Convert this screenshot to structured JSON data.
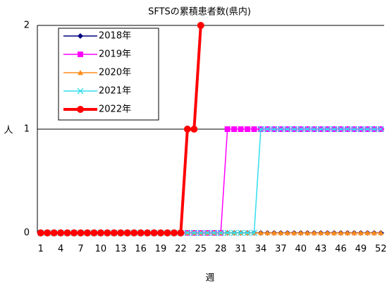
{
  "chart_data": {
    "type": "line",
    "title": "SFTSの累積患者数(県内)",
    "y_label": "人",
    "x_label": "週",
    "categories": [
      "1",
      null,
      null,
      "4",
      null,
      null,
      "7",
      null,
      null,
      "10",
      null,
      null,
      "13",
      null,
      null,
      "16",
      null,
      null,
      "19",
      null,
      null,
      "22",
      null,
      null,
      "25",
      null,
      null,
      "28",
      null,
      null,
      "31",
      null,
      null,
      "34",
      null,
      null,
      "37",
      null,
      null,
      "40",
      null,
      null,
      "43",
      null,
      null,
      "46",
      null,
      null,
      "49",
      null,
      null,
      "52"
    ],
    "ylim": [
      0,
      2
    ],
    "yticks": [
      0,
      1,
      2
    ],
    "grid": true,
    "legend": "upper left",
    "series": [
      {
        "name": "2018年",
        "color": "#000080",
        "marker": "diamond",
        "values": [
          0,
          0,
          0,
          0,
          0,
          0,
          0,
          0,
          0,
          0,
          0,
          0,
          0,
          0,
          0,
          0,
          0,
          0,
          0,
          0,
          0,
          0,
          0,
          0,
          0,
          0,
          0,
          0,
          0,
          0,
          0,
          0,
          0,
          0,
          0,
          0,
          0,
          0,
          0,
          0,
          0,
          0,
          0,
          0,
          0,
          0,
          0,
          0,
          0,
          0,
          0,
          0
        ]
      },
      {
        "name": "2019年",
        "color": "#ff00ff",
        "marker": "square",
        "values": [
          0,
          0,
          0,
          0,
          0,
          0,
          0,
          0,
          0,
          0,
          0,
          0,
          0,
          0,
          0,
          0,
          0,
          0,
          0,
          0,
          0,
          0,
          0,
          0,
          0,
          0,
          0,
          0,
          1,
          1,
          1,
          1,
          1,
          1,
          1,
          1,
          1,
          1,
          1,
          1,
          1,
          1,
          1,
          1,
          1,
          1,
          1,
          1,
          1,
          1,
          1,
          1
        ]
      },
      {
        "name": "2020年",
        "color": "#ff8c1a",
        "marker": "triangle",
        "values": [
          0,
          0,
          0,
          0,
          0,
          0,
          0,
          0,
          0,
          0,
          0,
          0,
          0,
          0,
          0,
          0,
          0,
          0,
          0,
          0,
          0,
          0,
          0,
          0,
          0,
          0,
          0,
          0,
          0,
          0,
          0,
          0,
          0,
          0,
          0,
          0,
          0,
          0,
          0,
          0,
          0,
          0,
          0,
          0,
          0,
          0,
          0,
          0,
          0,
          0,
          0,
          0
        ]
      },
      {
        "name": "2021年",
        "color": "#33ddee",
        "marker": "x",
        "values": [
          0,
          0,
          0,
          0,
          0,
          0,
          0,
          0,
          0,
          0,
          0,
          0,
          0,
          0,
          0,
          0,
          0,
          0,
          0,
          0,
          0,
          0,
          0,
          0,
          0,
          0,
          0,
          0,
          0,
          0,
          0,
          0,
          0,
          1,
          1,
          1,
          1,
          1,
          1,
          1,
          1,
          1,
          1,
          1,
          1,
          1,
          1,
          1,
          1,
          1,
          1,
          1
        ]
      },
      {
        "name": "2022年",
        "color": "#ff0000",
        "marker": "circle",
        "values": [
          0,
          0,
          0,
          0,
          0,
          0,
          0,
          0,
          0,
          0,
          0,
          0,
          0,
          0,
          0,
          0,
          0,
          0,
          0,
          0,
          0,
          0,
          1,
          1,
          2,
          null,
          null,
          null,
          null,
          null,
          null,
          null,
          null,
          null,
          null,
          null,
          null,
          null,
          null,
          null,
          null,
          null,
          null,
          null,
          null,
          null,
          null,
          null,
          null,
          null,
          null,
          null
        ]
      }
    ]
  }
}
